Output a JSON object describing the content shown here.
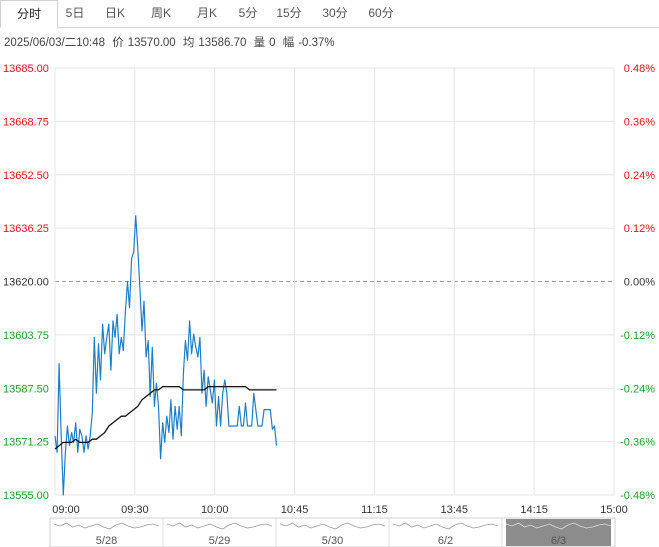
{
  "tabs": [
    {
      "label": "分时",
      "active": true
    },
    {
      "label": "5日",
      "active": false
    },
    {
      "label": "日K",
      "active": false
    },
    {
      "label": "周K",
      "active": false
    },
    {
      "label": "月K",
      "active": false
    },
    {
      "label": "5分",
      "active": false
    },
    {
      "label": "15分",
      "active": false
    },
    {
      "label": "30分",
      "active": false
    },
    {
      "label": "60分",
      "active": false
    }
  ],
  "info": {
    "datetime": "2025/06/03/二10:48",
    "price_label": "价",
    "price": "13570.00",
    "avg_label": "均",
    "avg": "13586.70",
    "vol_label": "量",
    "vol": "0",
    "chg_label": "幅",
    "chg": "-0.37%"
  },
  "colors": {
    "up": "#e8141c",
    "down": "#17a32b",
    "neutral": "#333333",
    "price_line": "#1e7fc8",
    "avg_line": "#111111",
    "grid": "#e4e4e4",
    "baseline": "#9a9a9a"
  },
  "chart_data": {
    "type": "line",
    "title": "",
    "xlabel": "",
    "ylabel": "",
    "prev_close": 13620.0,
    "ylim": [
      13555.0,
      13685.0
    ],
    "left_ticks": [
      "13685.00",
      "13668.75",
      "13652.50",
      "13636.25",
      "13620.00",
      "13603.75",
      "13587.50",
      "13571.25",
      "13555.00"
    ],
    "right_ticks": [
      "0.48%",
      "0.36%",
      "0.24%",
      "0.12%",
      "0.00%",
      "-0.12%",
      "-0.24%",
      "-0.36%",
      "-0.48%"
    ],
    "x_ticks": [
      "09:00",
      "09:30",
      "10:00",
      "10:45",
      "11:15",
      "13:45",
      "14:15",
      "15:00"
    ],
    "session_minutes": 270,
    "series": [
      {
        "name": "价",
        "x": [
          0,
          1,
          2,
          3,
          4,
          5,
          6,
          7,
          8,
          9,
          10,
          11,
          12,
          13,
          14,
          15,
          16,
          17,
          18,
          19,
          20,
          21,
          22,
          23,
          24,
          25,
          26,
          27,
          28,
          29,
          30,
          31,
          32,
          33,
          34,
          35,
          36,
          37,
          38,
          39,
          40,
          41,
          42,
          43,
          44,
          45,
          46,
          47,
          48,
          49,
          50,
          51,
          52,
          53,
          54,
          55,
          56,
          57,
          58,
          59,
          60,
          61,
          62,
          63,
          64,
          65,
          66,
          67,
          68,
          69,
          70,
          71,
          72,
          73,
          74,
          75,
          76,
          77,
          78,
          79,
          80,
          81,
          82,
          83,
          84,
          85,
          86,
          87,
          88,
          89,
          90,
          91,
          92,
          93,
          94,
          95,
          96,
          97,
          98,
          99,
          100,
          101,
          102,
          103,
          104,
          105,
          106,
          107
        ],
        "values": [
          13573,
          13568,
          13595,
          13573,
          13555,
          13568,
          13576,
          13570,
          13574,
          13571,
          13577,
          13568,
          13575,
          13573,
          13568,
          13573,
          13569,
          13573,
          13580,
          13603,
          13586,
          13601,
          13590,
          13607,
          13598,
          13603,
          13607,
          13593,
          13608,
          13603,
          13610,
          13598,
          13603,
          13599,
          13611,
          13620,
          13612,
          13627,
          13629,
          13640,
          13630,
          13618,
          13605,
          13614,
          13597,
          13602,
          13585,
          13600,
          13582,
          13589,
          13582,
          13566,
          13577,
          13571,
          13579,
          13574,
          13584,
          13572,
          13582,
          13575,
          13582,
          13573,
          13592,
          13602,
          13596,
          13608,
          13598,
          13604,
          13600,
          13597,
          13603,
          13586,
          13593,
          13582,
          13591,
          13587,
          13583,
          13590,
          13576,
          13585,
          13576,
          13586,
          13590,
          13586,
          13576,
          13576,
          13576,
          13576,
          13576,
          13582,
          13576,
          13576,
          13583,
          13576,
          13576,
          13576,
          13586,
          13581,
          13576,
          13576,
          13576,
          13581,
          13581,
          13581,
          13581,
          13575,
          13576,
          13570
        ]
      },
      {
        "name": "均",
        "x": [
          0,
          2,
          4,
          6,
          8,
          10,
          12,
          14,
          16,
          18,
          20,
          22,
          24,
          26,
          28,
          30,
          32,
          34,
          36,
          38,
          40,
          42,
          44,
          46,
          48,
          50,
          52,
          54,
          56,
          58,
          60,
          62,
          64,
          66,
          68,
          70,
          72,
          74,
          76,
          78,
          80,
          82,
          84,
          86,
          88,
          90,
          92,
          94,
          96,
          98,
          100,
          102,
          104,
          106,
          107
        ],
        "values": [
          13569,
          13570,
          13571,
          13571,
          13571,
          13572,
          13571,
          13571,
          13571,
          13572,
          13572,
          13573,
          13574,
          13576,
          13577,
          13578,
          13579,
          13579,
          13580,
          13581,
          13582,
          13584,
          13585,
          13586,
          13587,
          13587,
          13588,
          13588,
          13588,
          13588,
          13588,
          13587,
          13587,
          13587,
          13587,
          13587,
          13587,
          13588,
          13588,
          13588,
          13588,
          13588,
          13588,
          13588,
          13588,
          13588,
          13588,
          13587,
          13587,
          13587,
          13587,
          13587,
          13587,
          13587,
          13587
        ]
      }
    ],
    "navigator": {
      "labels": [
        "5/28",
        "5/29",
        "5/30",
        "6/2",
        "6/3"
      ],
      "selected": "6/3"
    }
  }
}
